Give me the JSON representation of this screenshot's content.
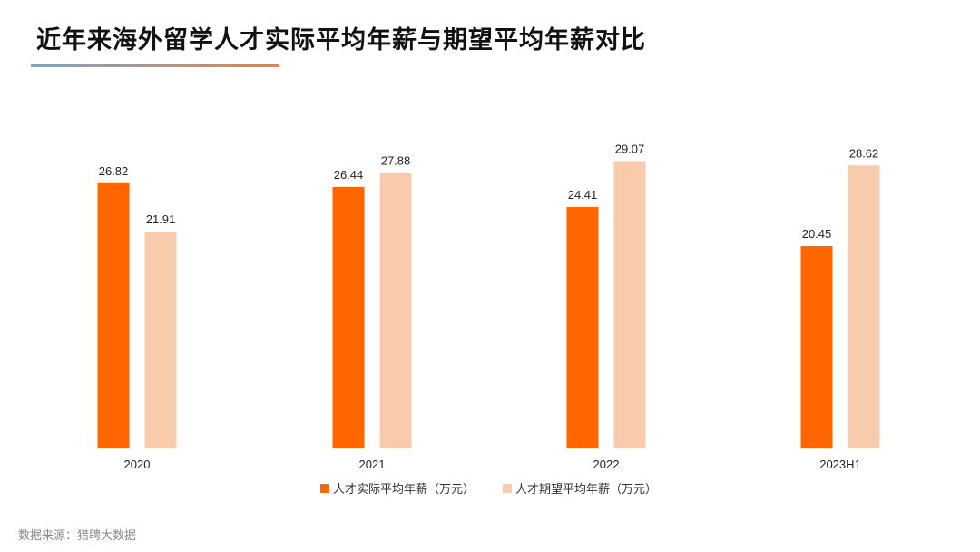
{
  "title": "近年来海外留学人才实际平均年薪与期望平均年薪对比",
  "source": "数据来源：猎聘大数据",
  "colors": {
    "actual": "#FF6600",
    "expected": "#F8CBAD",
    "rule_start": "#6FA8DC",
    "rule_end": "#FF7A2A"
  },
  "chart_data": {
    "type": "bar",
    "categories": [
      "2020",
      "2021",
      "2022",
      "2023H1"
    ],
    "series": [
      {
        "name": "人才实际平均年薪（万元）",
        "values": [
          26.82,
          26.44,
          24.41,
          20.45
        ]
      },
      {
        "name": "人才期望平均年薪（万元）",
        "values": [
          21.91,
          27.88,
          29.07,
          28.62
        ]
      }
    ],
    "ylim": [
      0,
      35
    ],
    "grid": false,
    "legend": "bottom-center"
  }
}
